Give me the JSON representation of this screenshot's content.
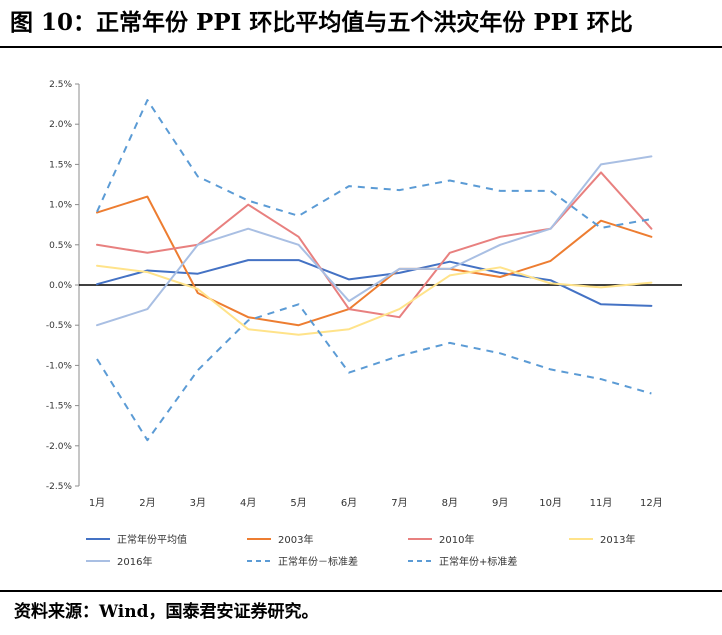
{
  "header": {
    "title": "图 10：正常年份 PPI 环比平均值与五个洪灾年份 PPI 环比"
  },
  "footer": {
    "source": "资料来源：Wind，国泰君安证券研究。"
  },
  "chart_data": {
    "type": "line",
    "title": "",
    "xlabel": "",
    "ylabel": "",
    "categories": [
      "1月",
      "2月",
      "3月",
      "4月",
      "5月",
      "6月",
      "7月",
      "8月",
      "9月",
      "10月",
      "11月",
      "12月"
    ],
    "ylim": [
      -2.5,
      2.5
    ],
    "yticks": [
      2.5,
      2.0,
      1.5,
      1.0,
      0.5,
      0.0,
      -0.5,
      -1.0,
      -1.5,
      -2.0,
      -2.5
    ],
    "ytick_labels": [
      "2.5%",
      "2.0%",
      "1.5%",
      "1.0%",
      "0.5%",
      "0.0%",
      "-0.5%",
      "-1.0%",
      "-1.5%",
      "-2.0%",
      "-2.5%"
    ],
    "grid": false,
    "zero_line": true,
    "legend_position": "bottom",
    "series": [
      {
        "name": "正常年份平均值",
        "color": "#4472C4",
        "dash": false,
        "values": [
          0.01,
          0.18,
          0.14,
          0.31,
          0.31,
          0.07,
          0.15,
          0.29,
          0.15,
          0.06,
          -0.24,
          -0.26
        ]
      },
      {
        "name": "2003年",
        "color": "#ED7D31",
        "dash": false,
        "values": [
          0.9,
          1.1,
          -0.1,
          -0.4,
          -0.5,
          -0.3,
          0.2,
          0.2,
          0.1,
          0.3,
          0.8,
          0.6
        ]
      },
      {
        "name": "2010年",
        "color": "#E8807F",
        "dash": false,
        "values": [
          0.5,
          0.4,
          0.5,
          1.0,
          0.6,
          -0.3,
          -0.4,
          0.4,
          0.6,
          0.7,
          1.4,
          0.7
        ]
      },
      {
        "name": "2013年",
        "color": "#FFE38A",
        "dash": false,
        "values": [
          0.24,
          0.16,
          -0.05,
          -0.55,
          -0.62,
          -0.55,
          -0.3,
          0.12,
          0.22,
          0.02,
          -0.03,
          0.03
        ]
      },
      {
        "name": "2016年",
        "color": "#A9BFE3",
        "dash": false,
        "values": [
          -0.5,
          -0.3,
          0.5,
          0.7,
          0.5,
          -0.2,
          0.2,
          0.2,
          0.5,
          0.7,
          1.5,
          1.6
        ]
      },
      {
        "name": "正常年份－标准差",
        "color": "#5B9BD5",
        "dash": true,
        "values": [
          -0.92,
          -1.93,
          -1.06,
          -0.44,
          -0.24,
          -1.09,
          -0.88,
          -0.72,
          -0.85,
          -1.05,
          -1.17,
          -1.35
        ]
      },
      {
        "name": "正常年份+标准差",
        "color": "#5B9BD5",
        "dash": true,
        "values": [
          0.91,
          2.3,
          1.35,
          1.05,
          0.86,
          1.23,
          1.18,
          1.3,
          1.17,
          1.17,
          0.71,
          0.82
        ]
      }
    ]
  }
}
